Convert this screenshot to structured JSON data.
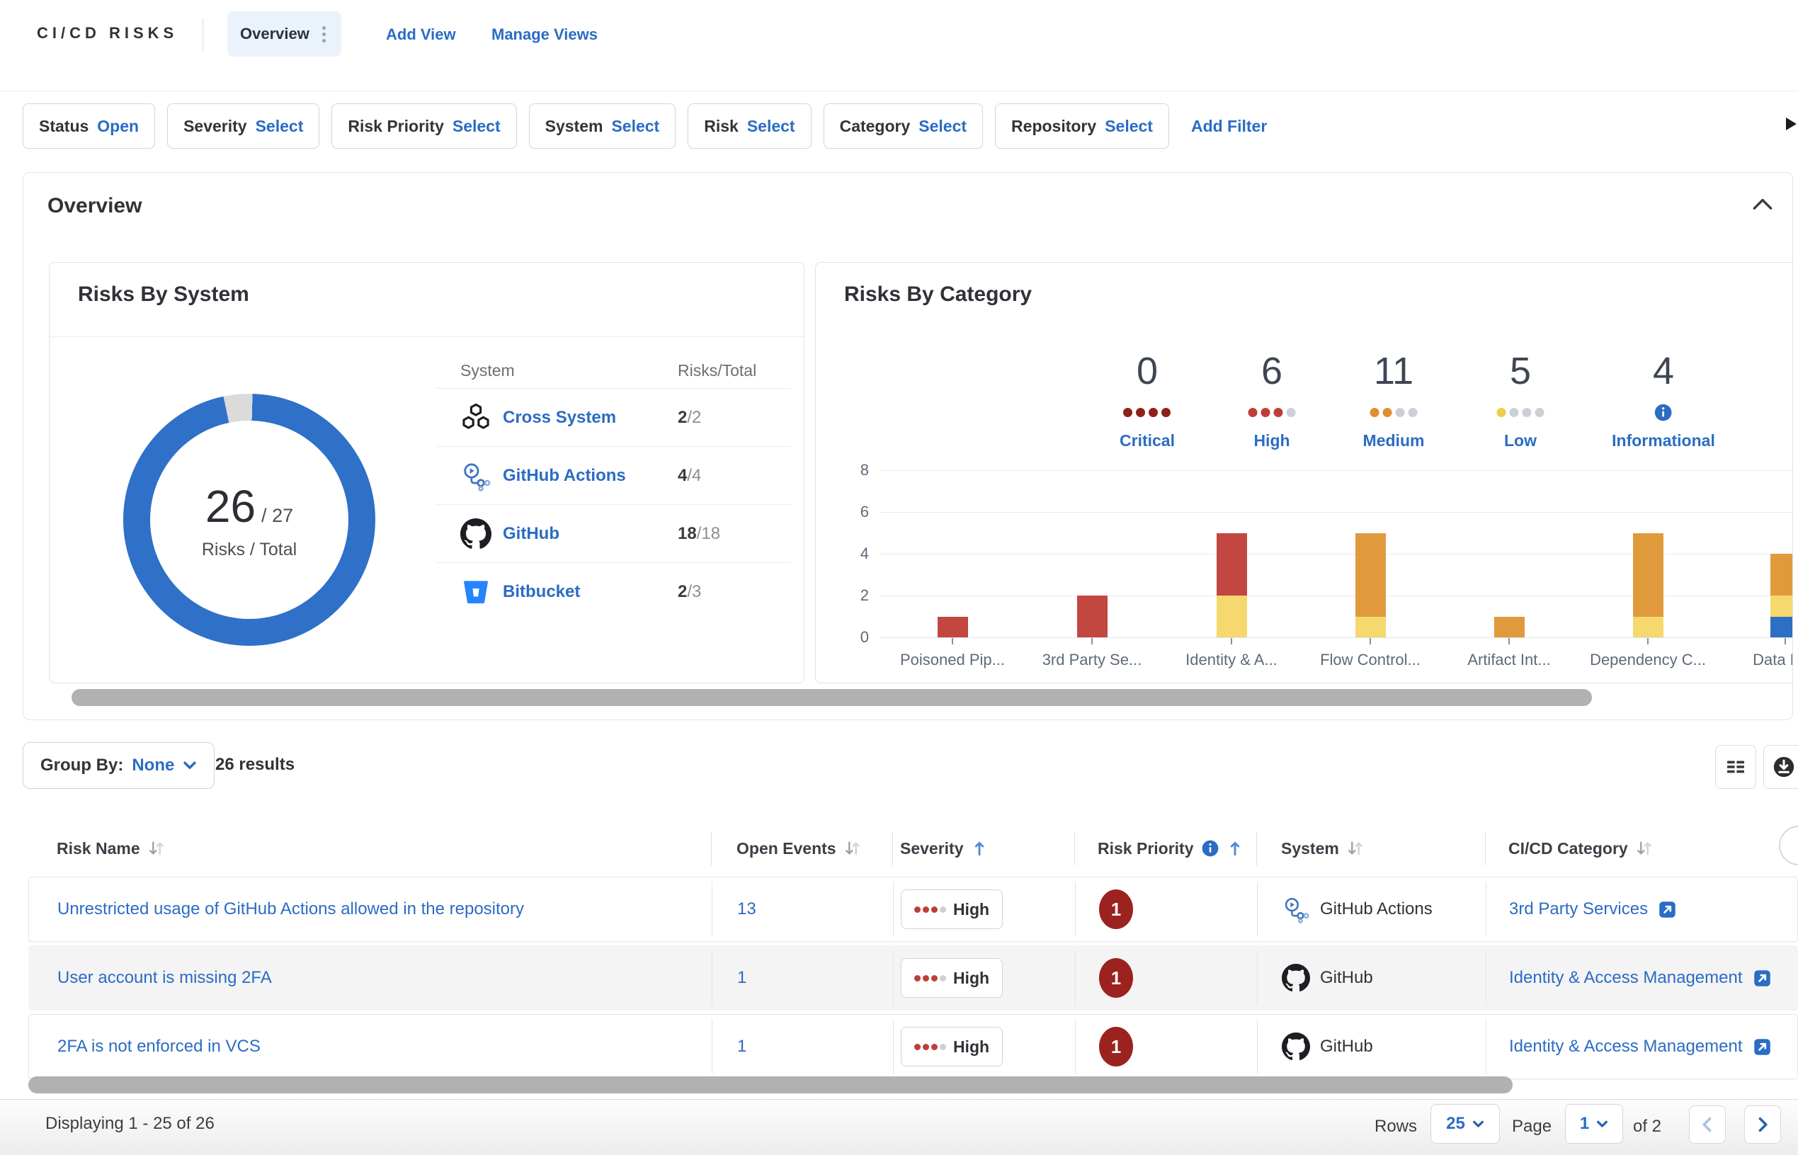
{
  "header": {
    "title": "CI/CD RISKS",
    "tab_label": "Overview",
    "add_view_label": "Add View",
    "manage_views_label": "Manage Views"
  },
  "filter_bar": {
    "chips": [
      {
        "label": "Status",
        "value": "Open"
      },
      {
        "label": "Severity",
        "value": "Select"
      },
      {
        "label": "Risk Priority",
        "value": "Select"
      },
      {
        "label": "System",
        "value": "Select"
      },
      {
        "label": "Risk",
        "value": "Select"
      },
      {
        "label": "Category",
        "value": "Select"
      },
      {
        "label": "Repository",
        "value": "Select"
      }
    ],
    "add_filter_label": "Add Filter"
  },
  "overview": {
    "title": "Overview",
    "risks_by_system": {
      "title": "Risks By System",
      "donut": {
        "risks": "26",
        "separator": "/",
        "total": "27",
        "caption": "Risks / Total",
        "primary_color": "#2F70C8",
        "remainder_color": "#DBDBDB"
      },
      "table": {
        "headers": [
          "System",
          "Risks/Total"
        ],
        "rows": [
          {
            "icon": "cross-system-icon",
            "name": "Cross System",
            "risks": "2",
            "total": "2"
          },
          {
            "icon": "github-actions-icon",
            "name": "GitHub Actions",
            "risks": "4",
            "total": "4"
          },
          {
            "icon": "github-icon",
            "name": "GitHub",
            "risks": "18",
            "total": "18"
          },
          {
            "icon": "bitbucket-icon",
            "name": "Bitbucket",
            "risks": "2",
            "total": "3"
          }
        ]
      }
    },
    "risks_by_category": {
      "title": "Risks By Category",
      "severity_summary": [
        {
          "count": "0",
          "label": "Critical",
          "dots_filled": 4,
          "dot_color": "#8E1F1B"
        },
        {
          "count": "6",
          "label": "High",
          "dots_filled": 3,
          "dot_color": "#BE3E36"
        },
        {
          "count": "11",
          "label": "Medium",
          "dots_filled": 2,
          "dot_color": "#DF8F30"
        },
        {
          "count": "5",
          "label": "Low",
          "dots_filled": 1,
          "dot_color": "#EFCB4E"
        },
        {
          "count": "4",
          "label": "Informational",
          "icon": "info-icon",
          "dot_color": "#2B6CC4"
        }
      ],
      "empty_dot_color": "#CBD0D7",
      "chart_data": {
        "type": "bar",
        "stacked": true,
        "title": "Risks By Category",
        "categories": [
          "Poisoned Pip...",
          "3rd Party Se...",
          "Identity & A...",
          "Flow Control...",
          "Artifact Int...",
          "Dependency C...",
          "Data Pr..."
        ],
        "series": [
          {
            "name": "Informational",
            "color": "#2E6FC4",
            "values": [
              0,
              0,
              0,
              0,
              0,
              0,
              1
            ]
          },
          {
            "name": "Low",
            "color": "#F5D96E",
            "values": [
              0,
              0,
              2,
              1,
              0,
              1,
              1
            ]
          },
          {
            "name": "Medium",
            "color": "#E09A3C",
            "values": [
              0,
              0,
              0,
              4,
              1,
              4,
              2
            ]
          },
          {
            "name": "High",
            "color": "#C14740",
            "values": [
              1,
              2,
              3,
              0,
              0,
              0,
              0
            ]
          }
        ],
        "ylim": [
          0,
          8
        ],
        "yticks": [
          0,
          2,
          4,
          6,
          8
        ],
        "grid": true,
        "legend": false
      }
    }
  },
  "toolbar": {
    "group_by_label": "Group By:",
    "group_by_value": "None",
    "results_text": "26 results"
  },
  "risk_table": {
    "columns": [
      {
        "label": "Risk Name",
        "sort": "both"
      },
      {
        "label": "Open Events",
        "sort": "both"
      },
      {
        "label": "Severity",
        "sort": "asc"
      },
      {
        "label": "Risk Priority",
        "sort": "asc",
        "info": true
      },
      {
        "label": "System",
        "sort": "both"
      },
      {
        "label": "CI/CD Category",
        "sort": "both"
      }
    ],
    "rows": [
      {
        "name": "Unrestricted usage of GitHub Actions allowed in the repository",
        "open_events": "13",
        "severity": {
          "label": "High",
          "dots_filled": 3,
          "dot_color": "#BE3E36"
        },
        "priority": "1",
        "system": {
          "icon": "github-actions-icon",
          "name": "GitHub Actions"
        },
        "category": "3rd Party Services"
      },
      {
        "name": "User account is missing 2FA",
        "open_events": "1",
        "severity": {
          "label": "High",
          "dots_filled": 3,
          "dot_color": "#BE3E36"
        },
        "priority": "1",
        "system": {
          "icon": "github-icon",
          "name": "GitHub"
        },
        "category": "Identity & Access Management"
      },
      {
        "name": "2FA is not enforced in VCS",
        "open_events": "1",
        "severity": {
          "label": "High",
          "dots_filled": 3,
          "dot_color": "#BE3E36"
        },
        "priority": "1",
        "system": {
          "icon": "github-icon",
          "name": "GitHub"
        },
        "category": "Identity & Access Management"
      }
    ]
  },
  "pagination": {
    "displaying_text": "Displaying 1 - 25 of 26",
    "rows_label": "Rows",
    "rows_value": "25",
    "page_label": "Page",
    "page_value": "1",
    "of_text": "of 2"
  },
  "colors": {
    "link": "#2B6CC4",
    "priority_badge": "#9B221E",
    "empty_dot": "#CBD0D7"
  }
}
